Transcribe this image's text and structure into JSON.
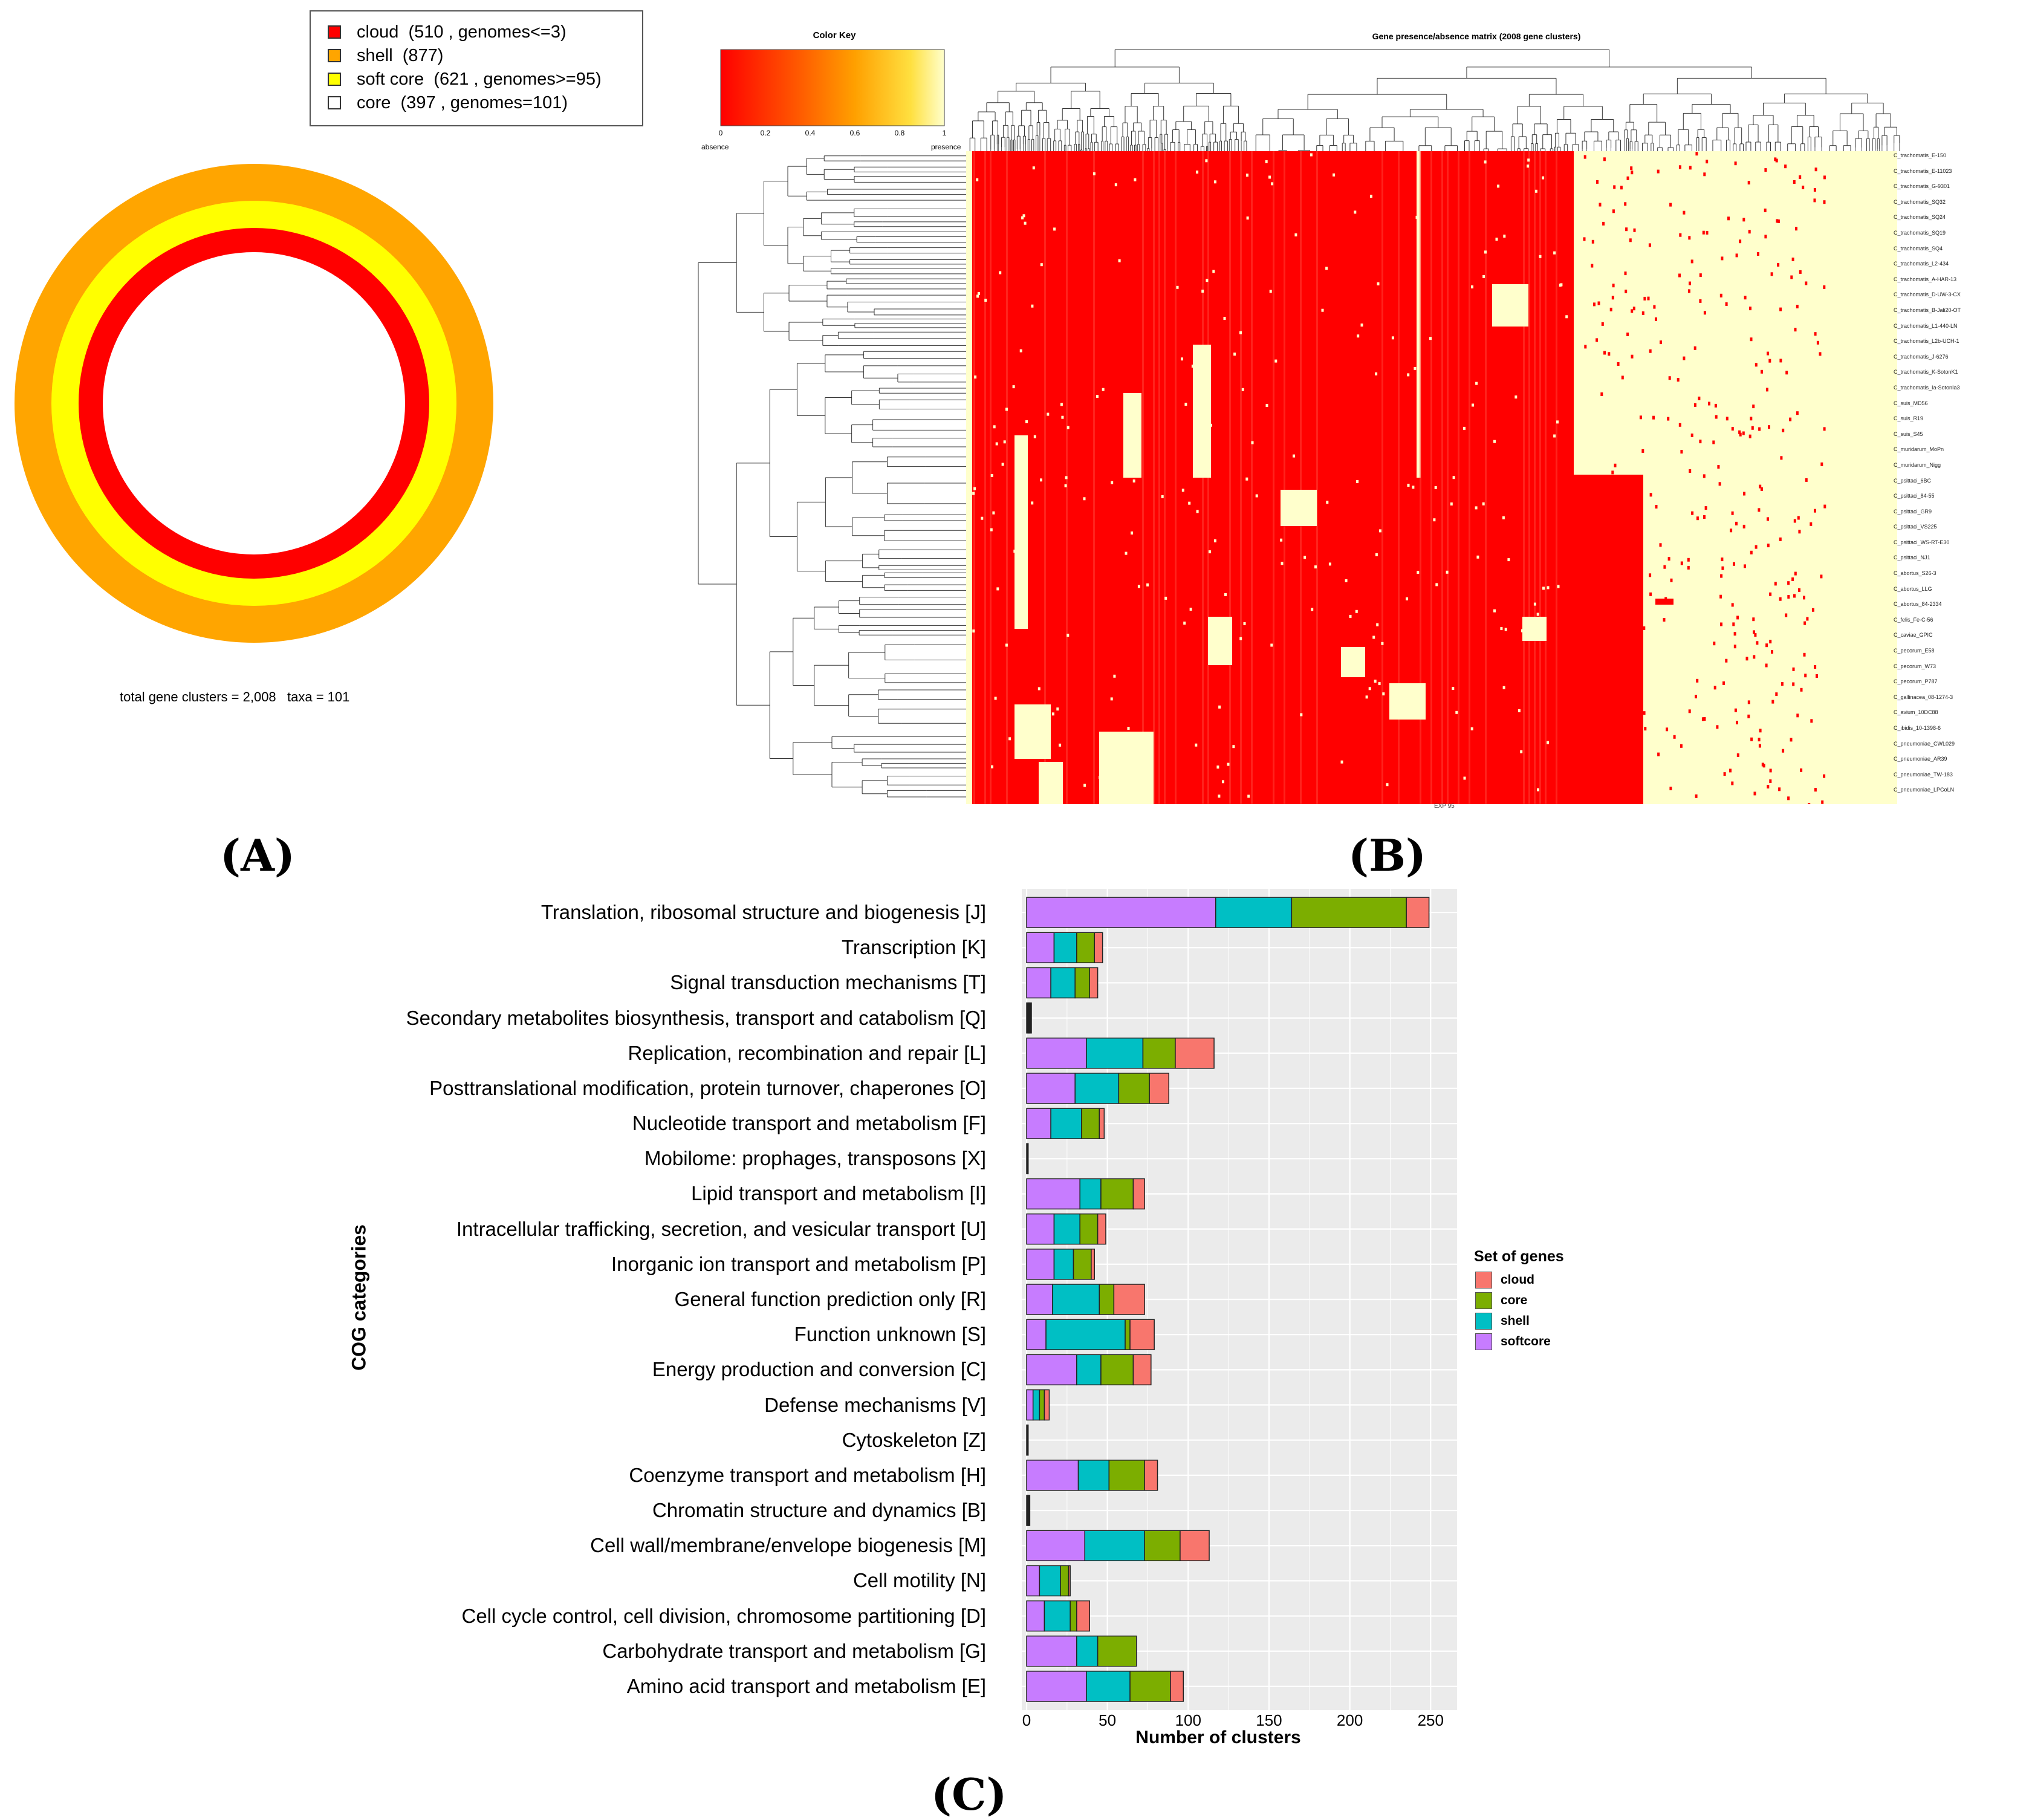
{
  "panel_labels": {
    "a": "(A)",
    "b": "(B)",
    "c": "(C)"
  },
  "colors": {
    "cloud_ring": "#ff0000",
    "shell_ring": "#ffa500",
    "softcore_ring": "#ffff00",
    "core_ring": "#ffffff",
    "heat_absence": "#ff0000",
    "heat_presence": "#ffffcc",
    "bar_cloud": "#f8766d",
    "bar_core": "#7cae00",
    "bar_shell": "#00bfc4",
    "bar_softcore": "#c77cff",
    "plot_bg": "#ebebeb"
  },
  "panel_a": {
    "legend": [
      {
        "label": "cloud  (510 , genomes<=3)",
        "color": "#ff0000"
      },
      {
        "label": "shell  (877)",
        "color": "#ffa500"
      },
      {
        "label": "soft core  (621 , genomes>=95)",
        "color": "#ffff00"
      },
      {
        "label": "core  (397 , genomes=101)",
        "color": "#ffffff"
      }
    ],
    "summary": "total gene clusters = 2,008   taxa = 101"
  },
  "panel_b": {
    "title": "Gene presence/absence matrix (2008 gene clusters)",
    "color_key": {
      "title": "Color Key",
      "ticks": [
        "0",
        "0.2",
        "0.4",
        "0.6",
        "0.8",
        "1"
      ],
      "low_label": "absence",
      "high_label": "presence"
    },
    "taxa": [
      "C_trachomatis_E-150",
      "C_trachomatis_E-11023",
      "C_trachomatis_G-9301",
      "C_trachomatis_SQ32",
      "C_trachomatis_SQ24",
      "C_trachomatis_SQ19",
      "C_trachomatis_SQ4",
      "C_trachomatis_L2-434",
      "C_trachomatis_A-HAR-13",
      "C_trachomatis_D-UW-3-CX",
      "C_trachomatis_B-Jali20-OT",
      "C_trachomatis_L1-440-LN",
      "C_trachomatis_L2b-UCH-1",
      "C_trachomatis_J-6276",
      "C_trachomatis_K-SotonK1",
      "C_trachomatis_Ia-SotonIa3",
      "C_suis_MD56",
      "C_suis_R19",
      "C_suis_S45",
      "C_muridarum_MoPn",
      "C_muridarum_Nigg",
      "C_psittaci_6BC",
      "C_psittaci_84-55",
      "C_psittaci_GR9",
      "C_psittaci_VS225",
      "C_psittaci_WS-RT-E30",
      "C_psittaci_NJ1",
      "C_abortus_S26-3",
      "C_abortus_LLG",
      "C_abortus_84-2334",
      "C_felis_Fe-C-56",
      "C_caviae_GPIC",
      "C_pecorum_E58",
      "C_pecorum_W73",
      "C_pecorum_P787",
      "C_gallinacea_08-1274-3",
      "C_avium_10DC88",
      "C_ibidis_10-1398-6",
      "C_pneumoniae_CWL029",
      "C_pneumoniae_AR39",
      "C_pneumoniae_TW-183",
      "C_pneumoniae_LPCoLN"
    ],
    "footer_code": "EXP 95"
  },
  "chart_data": [
    {
      "type": "pie",
      "title": "",
      "categories": [
        "cloud",
        "shell",
        "soft core",
        "core"
      ],
      "values": [
        510,
        877,
        621,
        397
      ],
      "notes": [
        "genomes<=3",
        "",
        "genomes>=95",
        "genomes=101"
      ],
      "total_gene_clusters": 2008,
      "taxa": 101
    },
    {
      "type": "heatmap",
      "title": "Gene presence/absence matrix (2008 gene clusters)",
      "rows": 101,
      "columns": 2008,
      "value_range": [
        0,
        1
      ],
      "low_label": "absence",
      "high_label": "presence"
    },
    {
      "type": "bar",
      "stacked": true,
      "orientation": "horizontal",
      "title": "",
      "xlabel": "Number of clusters",
      "ylabel": "COG categories",
      "xlim": [
        0,
        260
      ],
      "xticks": [
        0,
        50,
        100,
        150,
        200,
        250
      ],
      "legend_title": "Set of genes",
      "legend_labels": [
        "cloud",
        "core",
        "shell",
        "softcore"
      ],
      "categories": [
        "Translation, ribosomal structure and biogenesis [J]",
        "Transcription [K]",
        "Signal transduction mechanisms [T]",
        "Secondary metabolites biosynthesis, transport and catabolism [Q]",
        "Replication, recombination and repair [L]",
        "Posttranslational modification, protein turnover, chaperones [O]",
        "Nucleotide transport and metabolism [F]",
        "Mobilome: prophages, transposons [X]",
        "Lipid transport and metabolism [I]",
        "Intracellular trafficking, secretion, and vesicular transport [U]",
        "Inorganic ion transport and metabolism [P]",
        "General function prediction only [R]",
        "Function unknown [S]",
        "Energy production and conversion [C]",
        "Defense mechanisms [V]",
        "Cytoskeleton  [Z]",
        "Coenzyme transport and metabolism [H]",
        "Chromatin structure and dynamics [B]",
        "Cell wall/membrane/envelope biogenesis [M]",
        "Cell motility [N]",
        "Cell cycle control, cell division, chromosome partitioning [D]",
        "Carbohydrate transport and metabolism [G]",
        "Amino acid transport and metabolism [E]"
      ],
      "series": [
        {
          "name": "softcore",
          "values": [
            117,
            17,
            15,
            1,
            37,
            30,
            15,
            0,
            33,
            17,
            17,
            16,
            12,
            31,
            4,
            1,
            32,
            1,
            36,
            8,
            11,
            31,
            37
          ]
        },
        {
          "name": "shell",
          "values": [
            47,
            14,
            15,
            1,
            35,
            27,
            19,
            1,
            13,
            16,
            12,
            29,
            49,
            15,
            4,
            0,
            19,
            0,
            37,
            13,
            16,
            13,
            27
          ]
        },
        {
          "name": "core",
          "values": [
            71,
            11,
            9,
            1,
            20,
            19,
            11,
            0,
            20,
            11,
            11,
            9,
            3,
            20,
            3,
            0,
            22,
            1,
            22,
            5,
            4,
            24,
            25
          ]
        },
        {
          "name": "cloud",
          "values": [
            14,
            5,
            5,
            0,
            24,
            12,
            3,
            0,
            7,
            5,
            2,
            19,
            15,
            11,
            3,
            0,
            8,
            0,
            18,
            1,
            8,
            0,
            8
          ]
        }
      ]
    }
  ]
}
